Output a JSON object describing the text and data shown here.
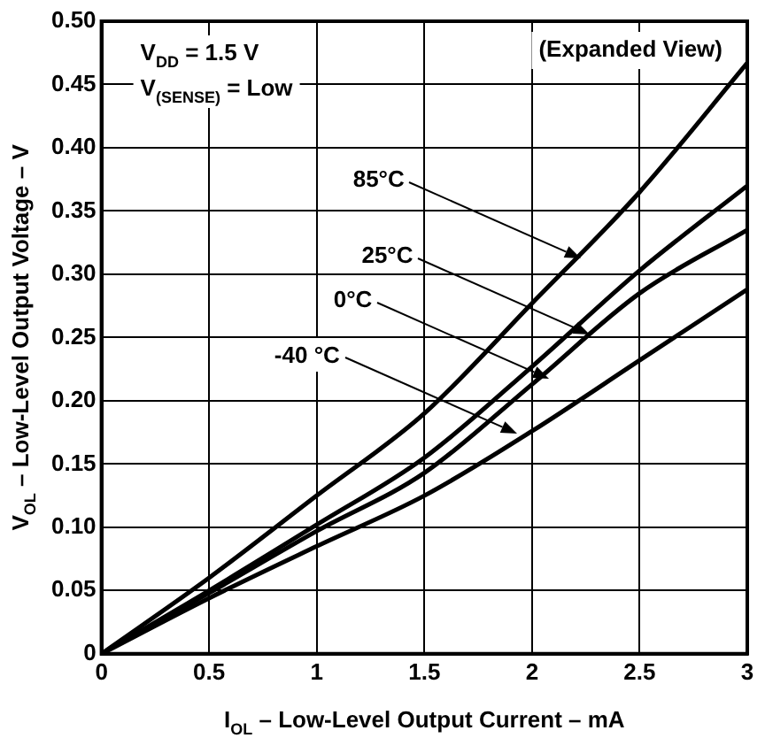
{
  "chart_data": {
    "type": "line",
    "xlabel": "I$_{OL}$ – Low-Level Output Current – mA",
    "ylabel": "V$_{OL}$ – Low-Level Output Voltage – V",
    "x": [
      0,
      0.5,
      1,
      1.5,
      2,
      2.5,
      3
    ],
    "series": [
      {
        "color": "#000000",
        "values": [
          0,
          0.06,
          0.125,
          0.19,
          0.277,
          0.365,
          0.467
        ]
      },
      {
        "color": "#000000",
        "values": [
          0,
          0.05,
          0.102,
          0.155,
          0.227,
          0.303,
          0.37
        ]
      },
      {
        "color": "#000000",
        "values": [
          0,
          0.048,
          0.097,
          0.143,
          0.213,
          0.285,
          0.335
        ]
      },
      {
        "color": "#000000",
        "values": [
          0,
          0.044,
          0.085,
          0.125,
          0.176,
          0.232,
          0.288
        ]
      }
    ],
    "annotations": [
      "V$_{DD}$ = 1.5 V",
      "V$_{(SENSE)}$ = Low",
      "(Expanded View)",
      {
        "text": "85°C",
        "x": 2.23,
        "y": 0.313
      },
      {
        "text": "25°C",
        "x": 2.27,
        "y": 0.253
      },
      {
        "text": "0°C",
        "x": 2.08,
        "y": 0.218
      },
      {
        "text": "-40 °C",
        "x": 1.93,
        "y": 0.174
      }
    ],
    "xlim": [
      0,
      3
    ],
    "xticks": [
      0,
      0.5,
      1,
      1.5,
      2,
      2.5,
      3
    ],
    "ylim": [
      0,
      0.5
    ],
    "yticks": [
      0,
      0.05,
      {
        "value": 0.1,
        "label": "0.10"
      },
      0.15,
      {
        "value": 0.2,
        "label": "0.20"
      },
      0.25,
      {
        "value": 0.3,
        "label": "0.30"
      },
      0.35,
      {
        "value": 0.4,
        "label": "0.40"
      },
      0.45,
      {
        "value": 0.5,
        "label": "0.50"
      }
    ],
    "grid": true,
    "legend": false,
    "line_style": "solid"
  }
}
